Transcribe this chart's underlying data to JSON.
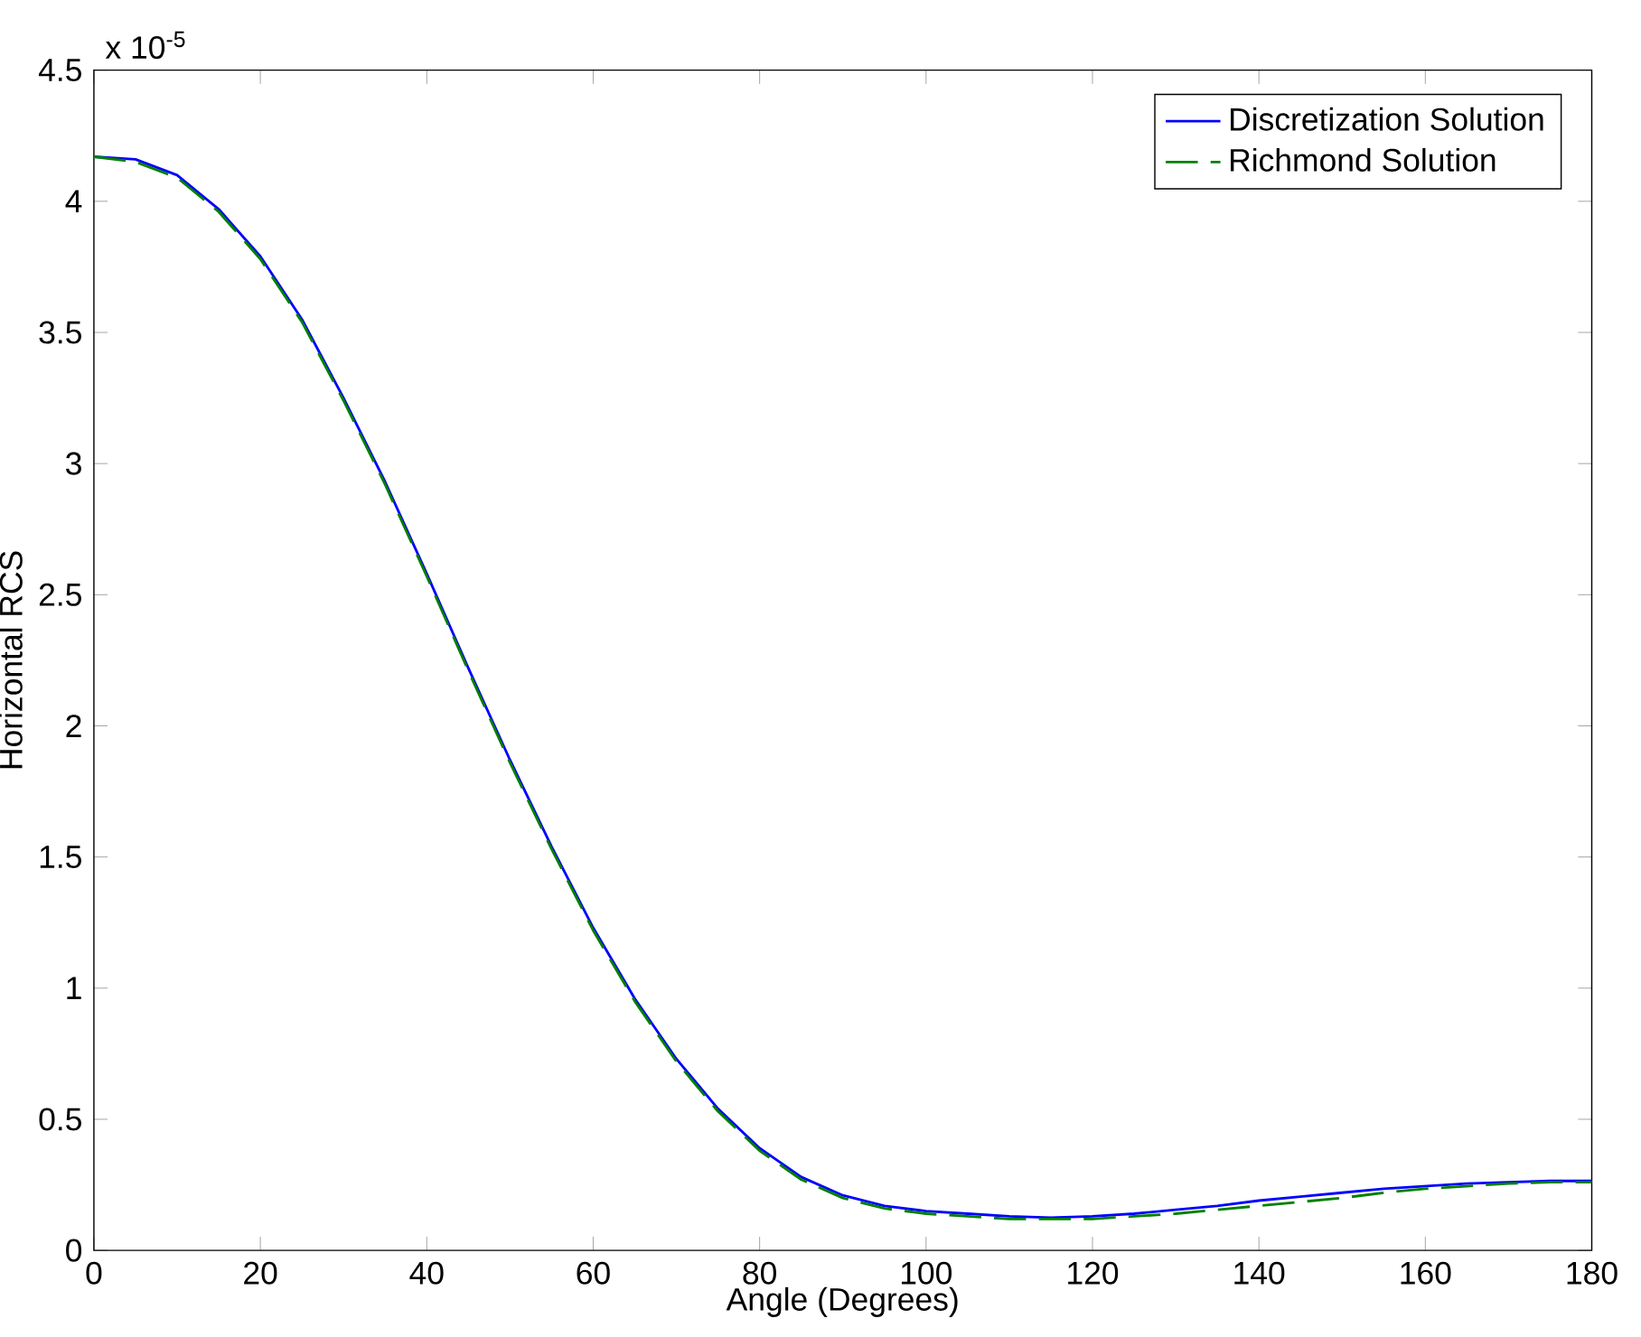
{
  "chart_data": {
    "type": "line",
    "xlabel": "Angle (Degrees)",
    "ylabel": "Horizontal RCS",
    "annotations": [
      "x 10$^{-5}$"
    ],
    "x": [
      0,
      5,
      10,
      15,
      20,
      25,
      30,
      35,
      40,
      45,
      50,
      55,
      60,
      65,
      70,
      75,
      80,
      85,
      90,
      95,
      100,
      105,
      110,
      115,
      120,
      125,
      130,
      135,
      140,
      145,
      150,
      155,
      160,
      165,
      170,
      175,
      180
    ],
    "series": [
      {
        "name": "Discretization Solution",
        "color": "#0000ff",
        "line_style": "solid",
        "values": [
          4.17,
          4.16,
          4.1,
          3.97,
          3.79,
          3.55,
          3.25,
          2.93,
          2.58,
          2.22,
          1.87,
          1.54,
          1.23,
          0.96,
          0.73,
          0.54,
          0.39,
          0.28,
          0.21,
          0.17,
          0.15,
          0.14,
          0.13,
          0.125,
          0.13,
          0.14,
          0.155,
          0.17,
          0.19,
          0.205,
          0.22,
          0.235,
          0.245,
          0.255,
          0.26,
          0.265,
          0.265
        ]
      },
      {
        "name": "Richmond Solution",
        "color": "#008000",
        "line_style": "dashed",
        "values": [
          4.17,
          4.15,
          4.09,
          3.96,
          3.78,
          3.54,
          3.24,
          2.92,
          2.57,
          2.21,
          1.86,
          1.53,
          1.22,
          0.95,
          0.72,
          0.53,
          0.38,
          0.27,
          0.2,
          0.16,
          0.14,
          0.13,
          0.12,
          0.12,
          0.12,
          0.13,
          0.14,
          0.155,
          0.17,
          0.185,
          0.2,
          0.22,
          0.235,
          0.245,
          0.255,
          0.26,
          0.26
        ]
      }
    ],
    "xlim": [
      0,
      180
    ],
    "ylim": [
      0,
      4.5
    ],
    "xticks": [
      0,
      20,
      40,
      60,
      80,
      100,
      120,
      140,
      160,
      180
    ],
    "yticks": [
      0,
      0.5,
      1,
      1.5,
      2,
      2.5,
      3,
      3.5,
      4,
      4.5
    ],
    "legend": "top right",
    "grid": false
  }
}
